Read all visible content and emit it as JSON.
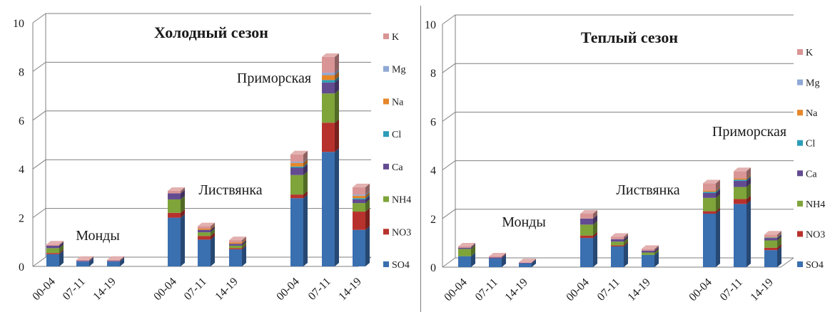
{
  "colors": {
    "SO4": "#3a6fb0",
    "NO3": "#b8322d",
    "NH4": "#7ea43a",
    "Ca": "#634b91",
    "Cl": "#2c9db8",
    "Na": "#e6872a",
    "Mg": "#8fa8d6",
    "K": "#d99595",
    "grid": "#7f7f7f",
    "axis": "#404040"
  },
  "chart_data": [
    {
      "type": "bar",
      "stacked": true,
      "style": "3d-stacked-columns",
      "title": "Холодный сезон",
      "xlabel": "",
      "ylabel": "",
      "ylim": [
        0,
        10
      ],
      "yticks": [
        0,
        2,
        4,
        6,
        8,
        10
      ],
      "grid": true,
      "legend_position": "right",
      "categories": [
        "00-04",
        "07-11",
        "14-19",
        "00-04",
        "07-11",
        "14-19",
        "00-04",
        "07-11",
        "14-19"
      ],
      "groups": [
        {
          "label": "Монды",
          "members": [
            0,
            1,
            2
          ]
        },
        {
          "label": "Листвянка",
          "members": [
            3,
            4,
            5
          ]
        },
        {
          "label": "Приморская",
          "members": [
            6,
            7,
            8
          ]
        }
      ],
      "series": [
        {
          "name": "SO4",
          "values": [
            0.5,
            0.2,
            0.2,
            2.0,
            1.1,
            0.7,
            2.8,
            4.7,
            1.5
          ]
        },
        {
          "name": "NO3",
          "values": [
            0.05,
            0.0,
            0.0,
            0.2,
            0.15,
            0.05,
            0.15,
            1.2,
            0.75
          ]
        },
        {
          "name": "NH4",
          "values": [
            0.2,
            0.0,
            0.0,
            0.55,
            0.15,
            0.1,
            0.8,
            1.2,
            0.35
          ]
        },
        {
          "name": "Ca",
          "values": [
            0.1,
            0.03,
            0.03,
            0.25,
            0.1,
            0.08,
            0.3,
            0.45,
            0.15
          ]
        },
        {
          "name": "Cl",
          "values": [
            0.0,
            0.0,
            0.0,
            0.0,
            0.0,
            0.0,
            0.05,
            0.1,
            0.05
          ]
        },
        {
          "name": "Na",
          "values": [
            0.0,
            0.0,
            0.0,
            0.0,
            0.05,
            0.05,
            0.15,
            0.2,
            0.1
          ]
        },
        {
          "name": "Mg",
          "values": [
            0.0,
            0.0,
            0.0,
            0.0,
            0.0,
            0.0,
            0.05,
            0.1,
            0.05
          ]
        },
        {
          "name": "K",
          "values": [
            0.05,
            0.04,
            0.04,
            0.1,
            0.1,
            0.1,
            0.3,
            0.65,
            0.3
          ]
        }
      ]
    },
    {
      "type": "bar",
      "stacked": true,
      "style": "3d-stacked-columns",
      "title": "Теплый сезон",
      "xlabel": "",
      "ylabel": "",
      "ylim": [
        0,
        10
      ],
      "yticks": [
        0,
        2,
        4,
        6,
        8,
        10
      ],
      "grid": true,
      "legend_position": "right",
      "categories": [
        "00-04",
        "07-11",
        "14-19",
        "00-04",
        "07-11",
        "14-19",
        "00-04",
        "07-11",
        "14-19"
      ],
      "groups": [
        {
          "label": "Монды",
          "members": [
            0,
            1,
            2
          ]
        },
        {
          "label": "Листвянка",
          "members": [
            3,
            4,
            5
          ]
        },
        {
          "label": "Приморская",
          "members": [
            6,
            7,
            8
          ]
        }
      ],
      "series": [
        {
          "name": "SO4",
          "values": [
            0.45,
            0.35,
            0.15,
            1.2,
            0.85,
            0.5,
            2.2,
            2.6,
            0.7
          ]
        },
        {
          "name": "NO3",
          "values": [
            0.0,
            0.0,
            0.0,
            0.1,
            0.05,
            0.0,
            0.1,
            0.2,
            0.1
          ]
        },
        {
          "name": "NH4",
          "values": [
            0.3,
            0.0,
            0.0,
            0.45,
            0.15,
            0.1,
            0.55,
            0.5,
            0.3
          ]
        },
        {
          "name": "Ca",
          "values": [
            0.05,
            0.05,
            0.03,
            0.25,
            0.1,
            0.08,
            0.2,
            0.25,
            0.1
          ]
        },
        {
          "name": "Cl",
          "values": [
            0.0,
            0.0,
            0.0,
            0.0,
            0.0,
            0.0,
            0.05,
            0.05,
            0.02
          ]
        },
        {
          "name": "Na",
          "values": [
            0.0,
            0.0,
            0.0,
            0.0,
            0.0,
            0.0,
            0.05,
            0.05,
            0.02
          ]
        },
        {
          "name": "Mg",
          "values": [
            0.0,
            0.0,
            0.0,
            0.0,
            0.0,
            0.0,
            0.0,
            0.0,
            0.0
          ]
        },
        {
          "name": "K",
          "values": [
            0.05,
            0.04,
            0.02,
            0.2,
            0.1,
            0.07,
            0.3,
            0.3,
            0.1
          ]
        }
      ]
    }
  ]
}
